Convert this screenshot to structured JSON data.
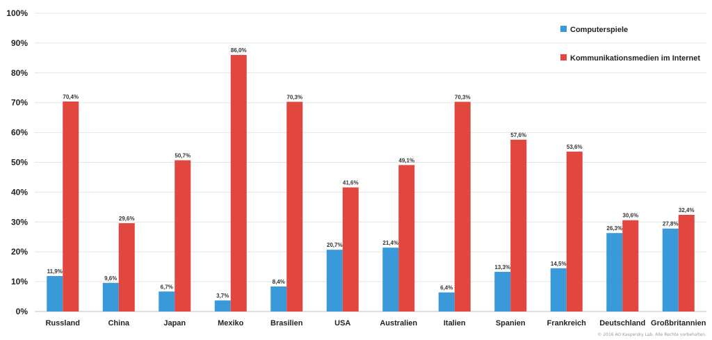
{
  "chart_data": {
    "type": "bar",
    "categories": [
      "Russland",
      "China",
      "Japan",
      "Mexiko",
      "Brasilien",
      "USA",
      "Australien",
      "Italien",
      "Spanien",
      "Frankreich",
      "Deutschland",
      "Großbritannien"
    ],
    "series": [
      {
        "name": "Computerspiele",
        "color": "#3a9ad9",
        "values": [
          11.9,
          9.6,
          6.7,
          3.7,
          8.4,
          20.7,
          21.4,
          6.4,
          13.3,
          14.5,
          26.3,
          27.8
        ],
        "labels": [
          "11,9%",
          "9,6%",
          "6,7%",
          "3,7%",
          "8,4%",
          "20,7%",
          "21,4%",
          "6,4%",
          "13,3%",
          "14,5%",
          "26,3%",
          "27,8%"
        ]
      },
      {
        "name": "Kommunikationsmedien im Internet",
        "color": "#e2473f",
        "values": [
          70.4,
          29.6,
          50.7,
          86.0,
          70.3,
          41.6,
          49.1,
          70.3,
          57.6,
          53.6,
          30.6,
          32.4
        ],
        "labels": [
          "70,4%",
          "29,6%",
          "50,7%",
          "86,0%",
          "70,3%",
          "41,6%",
          "49,1%",
          "70,3%",
          "57,6%",
          "53,6%",
          "30,6%",
          "32,4%"
        ]
      }
    ],
    "ylim": [
      0,
      100
    ],
    "yticks": [
      "0%",
      "10%",
      "20%",
      "30%",
      "40%",
      "50%",
      "60%",
      "70%",
      "80%",
      "90%",
      "100%"
    ],
    "grid": true,
    "legend_position": "top-right"
  },
  "footer": {
    "copyright": "© 2016 AO Kaspersky Lab. Alle Rechte vorbehalten."
  }
}
